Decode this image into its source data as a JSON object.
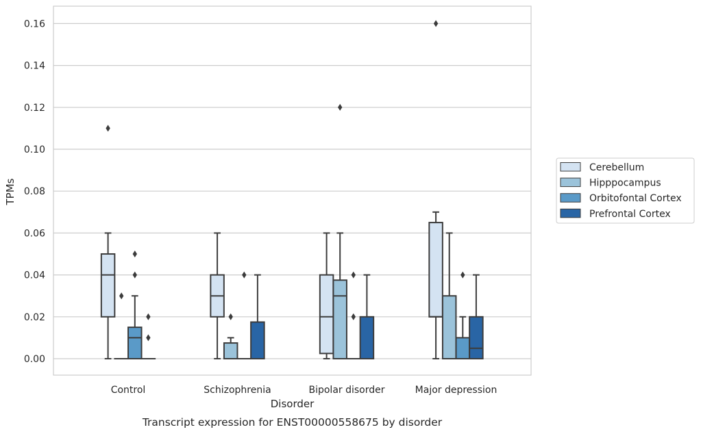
{
  "chart_data": {
    "type": "boxplot",
    "xlabel": "Disorder",
    "ylabel": "TPMs",
    "caption": "Transcript expression for ENST00000558675 by disorder",
    "ylim": [
      -0.008,
      0.168
    ],
    "yticks": [
      "0.00",
      "0.02",
      "0.04",
      "0.06",
      "0.08",
      "0.10",
      "0.12",
      "0.14",
      "0.16"
    ],
    "grid": "horizontal",
    "legend_position": "right",
    "categories": [
      "Control",
      "Schizophrenia",
      "Bipolar disorder",
      "Major depression"
    ],
    "series": [
      {
        "name": "Cerebellum",
        "color": "#d4e3f2",
        "boxes": [
          {
            "whislo": 0,
            "q1": 0.02,
            "med": 0.04,
            "q3": 0.05,
            "whishi": 0.06,
            "fliers": [
              0.11
            ]
          },
          {
            "whislo": 0,
            "q1": 0.02,
            "med": 0.03,
            "q3": 0.04,
            "whishi": 0.06,
            "fliers": []
          },
          {
            "whislo": 0,
            "q1": 0.0025,
            "med": 0.02,
            "q3": 0.04,
            "whishi": 0.06,
            "fliers": []
          },
          {
            "whislo": 0,
            "q1": 0.02,
            "med": 0.02,
            "q3": 0.065,
            "whishi": 0.07,
            "fliers": [
              0.16
            ]
          }
        ]
      },
      {
        "name": "Hipppocampus",
        "color": "#9bc3da",
        "boxes": [
          {
            "whislo": 0,
            "q1": 0,
            "med": 0,
            "q3": 0,
            "whishi": 0,
            "fliers": [
              0.03
            ]
          },
          {
            "whislo": 0,
            "q1": 0,
            "med": 0,
            "q3": 0.0075,
            "whishi": 0.01,
            "fliers": [
              0.02
            ]
          },
          {
            "whislo": 0,
            "q1": 0,
            "med": 0.03,
            "q3": 0.0375,
            "whishi": 0.06,
            "fliers": [
              0.12
            ]
          },
          {
            "whislo": 0,
            "q1": 0,
            "med": 0,
            "q3": 0.03,
            "whishi": 0.06,
            "fliers": []
          }
        ]
      },
      {
        "name": "Orbitofontal Cortex",
        "color": "#5a9ac8",
        "boxes": [
          {
            "whislo": 0,
            "q1": 0,
            "med": 0.01,
            "q3": 0.015,
            "whishi": 0.03,
            "fliers": [
              0.04,
              0.05
            ]
          },
          {
            "whislo": 0,
            "q1": 0,
            "med": 0,
            "q3": 0,
            "whishi": 0,
            "fliers": [
              0.04
            ]
          },
          {
            "whislo": 0,
            "q1": 0,
            "med": 0,
            "q3": 0,
            "whishi": 0,
            "fliers": [
              0.02,
              0.04
            ]
          },
          {
            "whislo": 0,
            "q1": 0,
            "med": 0,
            "q3": 0.01,
            "whishi": 0.02,
            "fliers": [
              0.04
            ]
          }
        ]
      },
      {
        "name": "Prefrontal Cortex",
        "color": "#2965a5",
        "boxes": [
          {
            "whislo": 0,
            "q1": 0,
            "med": 0,
            "q3": 0,
            "whishi": 0,
            "fliers": [
              0.01,
              0.02
            ]
          },
          {
            "whislo": 0,
            "q1": 0,
            "med": 0,
            "q3": 0.0175,
            "whishi": 0.04,
            "fliers": []
          },
          {
            "whislo": 0,
            "q1": 0,
            "med": 0,
            "q3": 0.02,
            "whishi": 0.04,
            "fliers": []
          },
          {
            "whislo": 0,
            "q1": 0,
            "med": 0.005,
            "q3": 0.02,
            "whishi": 0.04,
            "fliers": []
          }
        ]
      }
    ]
  }
}
